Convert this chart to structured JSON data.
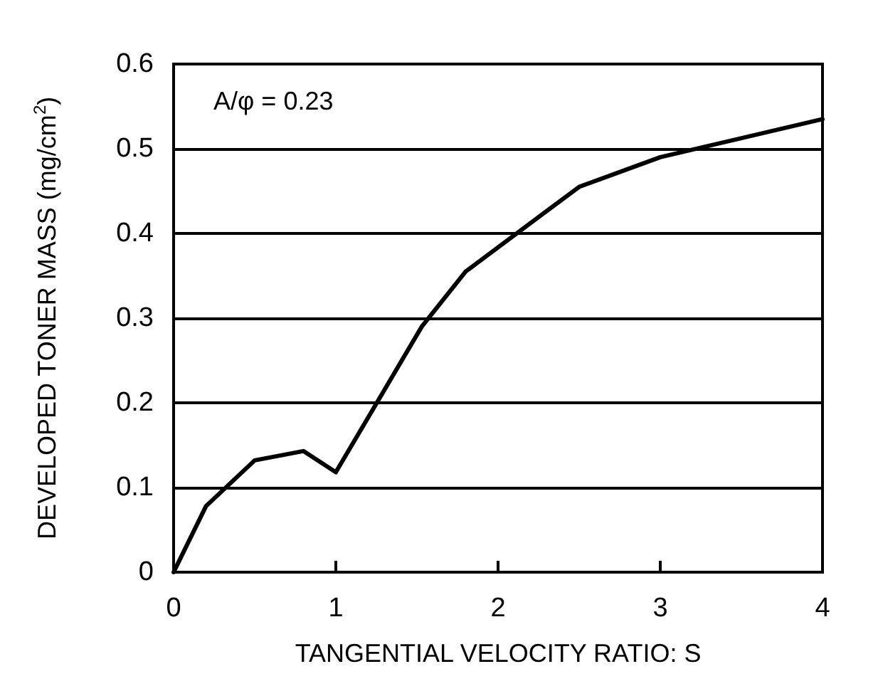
{
  "chart_data": {
    "type": "line",
    "xlabel": "TANGENTIAL VELOCITY RATIO: S",
    "ylabel": "DEVELOPED TONER MASS (mg/cm$^{2}$)",
    "annotations": [
      "A/φ = 0.23"
    ],
    "x": [
      0,
      0.2,
      0.5,
      0.8,
      1.0,
      1.53,
      1.8,
      2.5,
      3.0,
      4.0
    ],
    "series": [
      {
        "color": "#000000",
        "values": [
          0,
          0.078,
          0.132,
          0.143,
          0.118,
          0.29,
          0.355,
          0.455,
          0.49,
          0.535
        ]
      }
    ],
    "xlim": [
      0,
      4
    ],
    "xticks": [
      0,
      1,
      2,
      3,
      4
    ],
    "ylim": [
      0,
      0.6
    ],
    "yticks": [
      0,
      0.1,
      0.2,
      0.3,
      0.4,
      0.5,
      0.6
    ],
    "grid": "y",
    "marker": "none",
    "line_style": "solid"
  }
}
